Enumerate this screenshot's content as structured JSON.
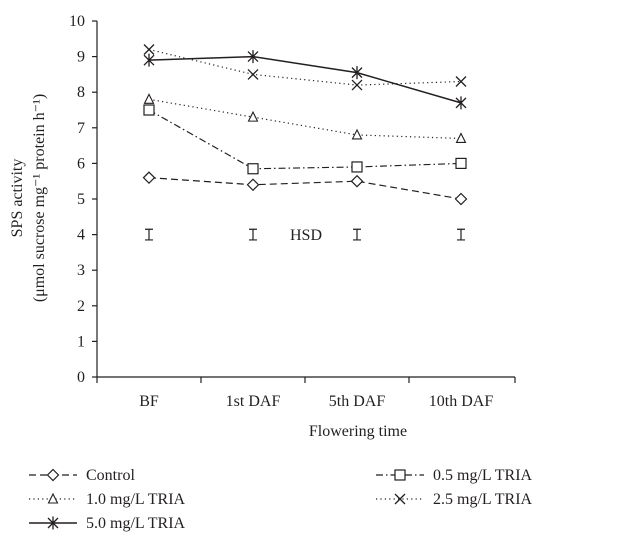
{
  "chart_data": {
    "type": "line",
    "title": "",
    "xlabel": "Flowering time",
    "ylabel_line1": "SPS activity",
    "ylabel_line2": "(μmol sucrose mg⁻¹ protein h⁻¹)",
    "categories": [
      "BF",
      "1st DAF",
      "5th DAF",
      "10th DAF"
    ],
    "ylim": [
      0,
      10
    ],
    "yticks": [
      "0",
      "1",
      "2",
      "3",
      "4",
      "5",
      "6",
      "7",
      "8",
      "9",
      "10"
    ],
    "grid": false,
    "legend_position": "bottom",
    "series": [
      {
        "name": "Control",
        "marker": "diamond",
        "dash": "dashed",
        "values": [
          5.6,
          5.4,
          5.5,
          5.0
        ]
      },
      {
        "name": "0.5 mg/L TRIA",
        "marker": "square",
        "dash": "dashdot",
        "values": [
          7.5,
          5.85,
          5.9,
          6.0
        ]
      },
      {
        "name": "1.0 mg/L TRIA",
        "marker": "triangle",
        "dash": "dotted",
        "values": [
          7.8,
          7.3,
          6.8,
          6.7
        ]
      },
      {
        "name": "2.5 mg/L TRIA",
        "marker": "x",
        "dash": "dotted",
        "values": [
          9.2,
          8.5,
          8.2,
          8.3
        ]
      },
      {
        "name": "5.0 mg/L TRIA",
        "marker": "asterisk",
        "dash": "solid",
        "values": [
          8.9,
          9.0,
          8.55,
          7.7
        ]
      }
    ],
    "hsd": {
      "label": "HSD",
      "value": 4.0,
      "half_range": 0.15
    }
  },
  "colors": {
    "line": "#231f20",
    "background": "#ffffff"
  }
}
